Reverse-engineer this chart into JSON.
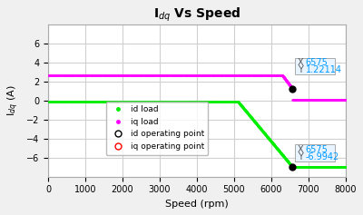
{
  "title": "I$_{dq}$ Vs Speed",
  "xlabel": "Speed (rpm)",
  "ylabel": "I$_{dq}$ (A)",
  "xlim": [
    0,
    8000
  ],
  "ylim": [
    -8,
    8
  ],
  "yticks": [
    -6,
    -4,
    -2,
    0,
    2,
    4,
    6
  ],
  "xticks": [
    0,
    1000,
    2000,
    3000,
    4000,
    5000,
    6000,
    7000,
    8000
  ],
  "bg_color": "#f0f0f0",
  "plot_bg_color": "#ffffff",
  "grid_color": "#d0d0d0",
  "id_color": "#00ee00",
  "iq_color": "#ff00ff",
  "op_point_x": 6575,
  "op_point_iq_y": 1.22114,
  "op_point_id_y": -6.9942,
  "annotation_bg": "#e8f4ff",
  "annotation_border": "#aaaaaa",
  "annotation_text_color": "#555555",
  "annotation_val_color": "#0099ff",
  "legend_items": [
    "id load",
    "iq load",
    "id operating point",
    "iq operating point"
  ]
}
